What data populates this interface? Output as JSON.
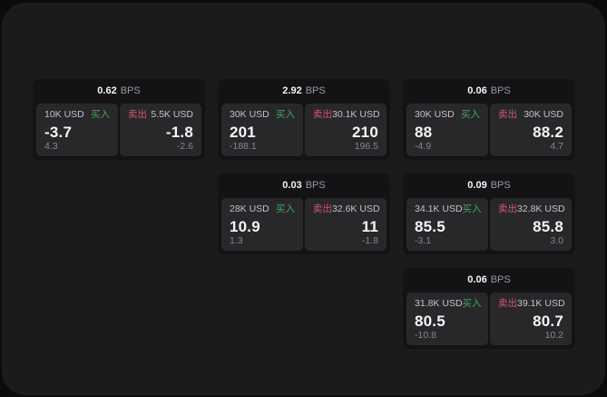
{
  "labels": {
    "bps_unit": "BPS",
    "buy": "买入",
    "sell": "卖出"
  },
  "colors": {
    "outer_bg": "#0b0b0c",
    "page_bg": "#1b1b1d",
    "card_bg": "#131315",
    "panel_bg": "#28282b",
    "buy": "#45a65a",
    "sell": "#d25570",
    "text_primary": "#f5f5f7",
    "text_secondary": "#c3c3c8",
    "text_muted": "#87878d"
  },
  "cards": [
    {
      "bps": "0.62",
      "col": 1,
      "row": 1,
      "buy": {
        "notional": "10K USD",
        "price": "-3.7",
        "sub": "4.3"
      },
      "sell": {
        "notional": "5.5K USD",
        "price": "-1.8",
        "sub": "-2.6"
      }
    },
    {
      "bps": "2.92",
      "col": 2,
      "row": 1,
      "buy": {
        "notional": "30K USD",
        "price": "201",
        "sub": "-188.1"
      },
      "sell": {
        "notional": "30.1K USD",
        "price": "210",
        "sub": "196.5"
      }
    },
    {
      "bps": "0.06",
      "col": 3,
      "row": 1,
      "buy": {
        "notional": "30K USD",
        "price": "88",
        "sub": "-4.9"
      },
      "sell": {
        "notional": "30K USD",
        "price": "88.2",
        "sub": "4.7"
      }
    },
    {
      "bps": "0.03",
      "col": 2,
      "row": 2,
      "buy": {
        "notional": "28K USD",
        "price": "10.9",
        "sub": "1.3"
      },
      "sell": {
        "notional": "32.6K USD",
        "price": "11",
        "sub": "-1.8"
      }
    },
    {
      "bps": "0.09",
      "col": 3,
      "row": 2,
      "buy": {
        "notional": "34.1K USD",
        "price": "85.5",
        "sub": "-3.1"
      },
      "sell": {
        "notional": "32.8K USD",
        "price": "85.8",
        "sub": "3.0"
      }
    },
    {
      "bps": "0.06",
      "col": 3,
      "row": 3,
      "buy": {
        "notional": "31.8K USD",
        "price": "80.5",
        "sub": "-10.8"
      },
      "sell": {
        "notional": "39.1K USD",
        "price": "80.7",
        "sub": "10.2"
      }
    }
  ]
}
